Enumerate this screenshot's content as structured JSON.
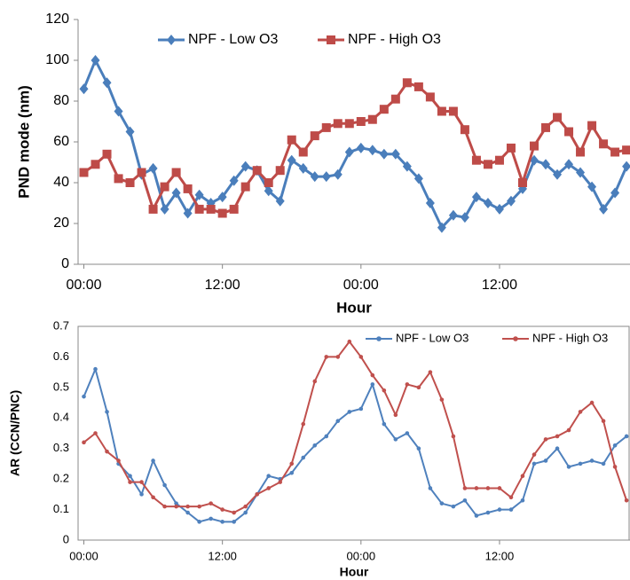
{
  "chart_data": [
    {
      "type": "line",
      "x_label": "Hour",
      "y_label": "PND mode (nm)",
      "x": [
        0,
        1,
        2,
        3,
        4,
        5,
        6,
        7,
        8,
        9,
        10,
        11,
        12,
        13,
        14,
        15,
        16,
        17,
        18,
        19,
        20,
        21,
        22,
        23,
        24,
        25,
        26,
        27,
        28,
        29,
        30,
        31,
        32,
        33,
        34,
        35,
        36,
        37,
        38,
        39,
        40,
        41,
        42,
        43,
        44,
        45,
        46,
        47
      ],
      "series": [
        {
          "name": "NPF - Low O3",
          "color": "#4a7ebb",
          "marker": "diamond",
          "values": [
            86,
            100,
            89,
            75,
            65,
            44,
            47,
            27,
            35,
            25,
            34,
            30,
            33,
            41,
            48,
            46,
            36,
            31,
            51,
            47,
            43,
            43,
            44,
            55,
            57,
            56,
            54,
            54,
            48,
            42,
            30,
            18,
            24,
            23,
            33,
            30,
            27,
            31,
            37,
            51,
            49,
            44,
            49,
            45,
            38,
            27,
            35,
            48
          ]
        },
        {
          "name": "NPF - High O3",
          "color": "#be4b48",
          "marker": "square",
          "values": [
            45,
            49,
            54,
            42,
            40,
            45,
            27,
            38,
            45,
            37,
            27,
            27,
            25,
            27,
            38,
            46,
            40,
            46,
            61,
            55,
            63,
            67,
            69,
            69,
            70,
            71,
            76,
            81,
            89,
            87,
            82,
            75,
            75,
            66,
            51,
            49,
            51,
            57,
            40,
            58,
            67,
            72,
            65,
            55,
            68,
            59,
            55,
            56
          ]
        }
      ],
      "xlim": [
        -0.5,
        47.3
      ],
      "xticks": [
        {
          "value": 0,
          "label": "00:00"
        },
        {
          "value": 12,
          "label": "12:00"
        },
        {
          "value": 24,
          "label": "00:00"
        },
        {
          "value": 36,
          "label": "12:00"
        }
      ],
      "ylim": [
        0,
        120
      ],
      "yticks": [
        0,
        20,
        40,
        60,
        80,
        100,
        120
      ],
      "grid": false
    },
    {
      "type": "line",
      "x_label": "Hour",
      "y_label": "AR (CCN/PNC)",
      "x": [
        0,
        1,
        2,
        3,
        4,
        5,
        6,
        7,
        8,
        9,
        10,
        11,
        12,
        13,
        14,
        15,
        16,
        17,
        18,
        19,
        20,
        21,
        22,
        23,
        24,
        25,
        26,
        27,
        28,
        29,
        30,
        31,
        32,
        33,
        34,
        35,
        36,
        37,
        38,
        39,
        40,
        41,
        42,
        43,
        44,
        45,
        46,
        47
      ],
      "series": [
        {
          "name": "NPF - Low O3",
          "color": "#4f81bd",
          "marker": "circle",
          "values": [
            0.47,
            0.56,
            0.42,
            0.25,
            0.21,
            0.15,
            0.26,
            0.18,
            0.12,
            0.09,
            0.06,
            0.07,
            0.06,
            0.06,
            0.09,
            0.15,
            0.21,
            0.2,
            0.22,
            0.27,
            0.31,
            0.34,
            0.39,
            0.42,
            0.43,
            0.51,
            0.38,
            0.33,
            0.35,
            0.3,
            0.17,
            0.12,
            0.11,
            0.13,
            0.08,
            0.09,
            0.1,
            0.1,
            0.13,
            0.25,
            0.26,
            0.3,
            0.24,
            0.25,
            0.26,
            0.25,
            0.31,
            0.34
          ]
        },
        {
          "name": "NPF - High O3",
          "color": "#c0504d",
          "marker": "circle",
          "values": [
            0.32,
            0.35,
            0.29,
            0.26,
            0.19,
            0.19,
            0.14,
            0.11,
            0.11,
            0.11,
            0.11,
            0.12,
            0.1,
            0.09,
            0.11,
            0.15,
            0.17,
            0.19,
            0.25,
            0.38,
            0.52,
            0.6,
            0.6,
            0.65,
            0.6,
            0.54,
            0.49,
            0.41,
            0.51,
            0.5,
            0.55,
            0.46,
            0.34,
            0.17,
            0.17,
            0.17,
            0.17,
            0.14,
            0.21,
            0.28,
            0.33,
            0.34,
            0.36,
            0.42,
            0.45,
            0.39,
            0.24,
            0.13
          ]
        }
      ],
      "xlim": [
        -0.5,
        47.3
      ],
      "xticks": [
        {
          "value": 0,
          "label": "00:00"
        },
        {
          "value": 12,
          "label": "12:00"
        },
        {
          "value": 24,
          "label": "00:00"
        },
        {
          "value": 36,
          "label": "12:00"
        }
      ],
      "ylim": [
        0,
        0.7
      ],
      "yticks": [
        0,
        0.1,
        0.2,
        0.3,
        0.4,
        0.5,
        0.6,
        0.7
      ],
      "grid": false
    }
  ]
}
